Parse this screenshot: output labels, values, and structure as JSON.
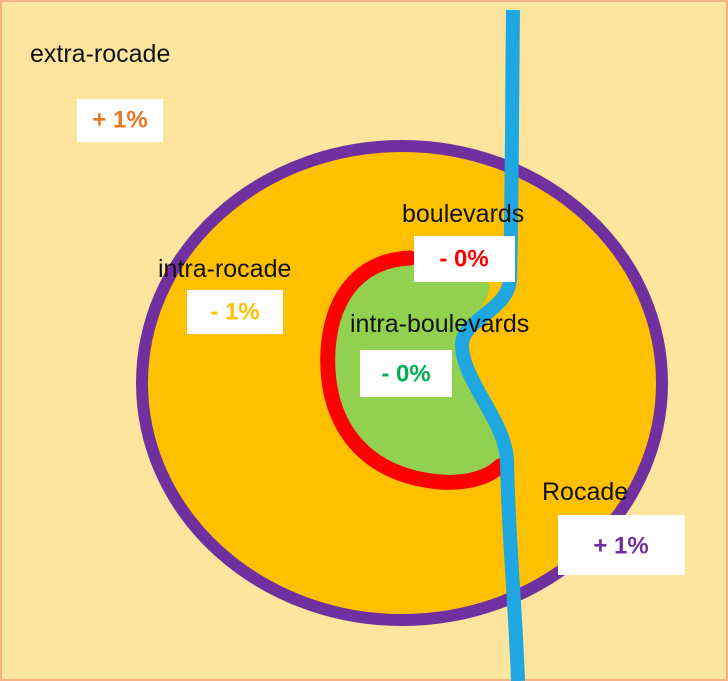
{
  "zones": [
    {
      "name": "extra-rocade",
      "change": "+ 1%"
    },
    {
      "name": "intra-rocade",
      "change": "- 1%"
    },
    {
      "name": "boulevards",
      "change": "- 0%"
    },
    {
      "name": "intra-boulevards",
      "change": "- 0%"
    },
    {
      "name": "Rocade",
      "change": "+ 1%"
    }
  ]
}
